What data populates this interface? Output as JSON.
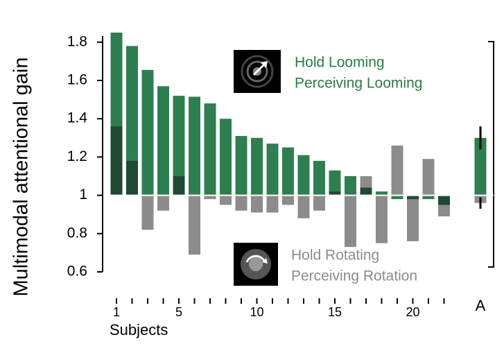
{
  "chart_data": {
    "type": "bar",
    "y_label": "Multimodal attentional gain",
    "x_label": "Subjects",
    "categories": [
      "1",
      null,
      null,
      null,
      "5",
      null,
      null,
      null,
      null,
      "10",
      null,
      null,
      null,
      null,
      "15",
      null,
      null,
      null,
      null,
      "20",
      null,
      null,
      "A"
    ],
    "series": [
      {
        "name": [
          "Hold Looming",
          "Perceiving Looming"
        ],
        "color": "#2e7f50",
        "overlap_color": "#1f4a31",
        "values": [
          1.85,
          1.78,
          1.655,
          1.57,
          1.52,
          1.515,
          1.48,
          1.4,
          1.31,
          1.3,
          1.27,
          1.25,
          1.21,
          1.18,
          1.13,
          1.1,
          1.04,
          1.02,
          0.98,
          0.98,
          0.98,
          0.95,
          1.3
        ],
        "errors": [
          null,
          null,
          null,
          null,
          null,
          null,
          null,
          null,
          null,
          null,
          null,
          null,
          null,
          null,
          null,
          null,
          null,
          null,
          null,
          null,
          null,
          null,
          0.06
        ]
      },
      {
        "name": [
          "Hold Rotating",
          "Perceiving Rotation"
        ],
        "color": "#8c8c8c",
        "values": [
          1.36,
          1.18,
          0.82,
          0.92,
          1.1,
          0.69,
          0.98,
          0.95,
          0.92,
          0.91,
          0.91,
          0.95,
          0.88,
          0.92,
          1.02,
          0.73,
          1.1,
          0.75,
          1.26,
          0.76,
          1.19,
          0.89,
          0.96
        ],
        "errors": [
          null,
          null,
          null,
          null,
          null,
          null,
          null,
          null,
          null,
          null,
          null,
          null,
          null,
          null,
          null,
          null,
          null,
          null,
          null,
          null,
          null,
          null,
          0.03
        ]
      }
    ],
    "baseline": 1.0,
    "ylim": [
      0.6,
      1.85
    ],
    "yticks": [
      0.6,
      0.8,
      1.0,
      1.2,
      1.4,
      1.6,
      1.8
    ]
  }
}
